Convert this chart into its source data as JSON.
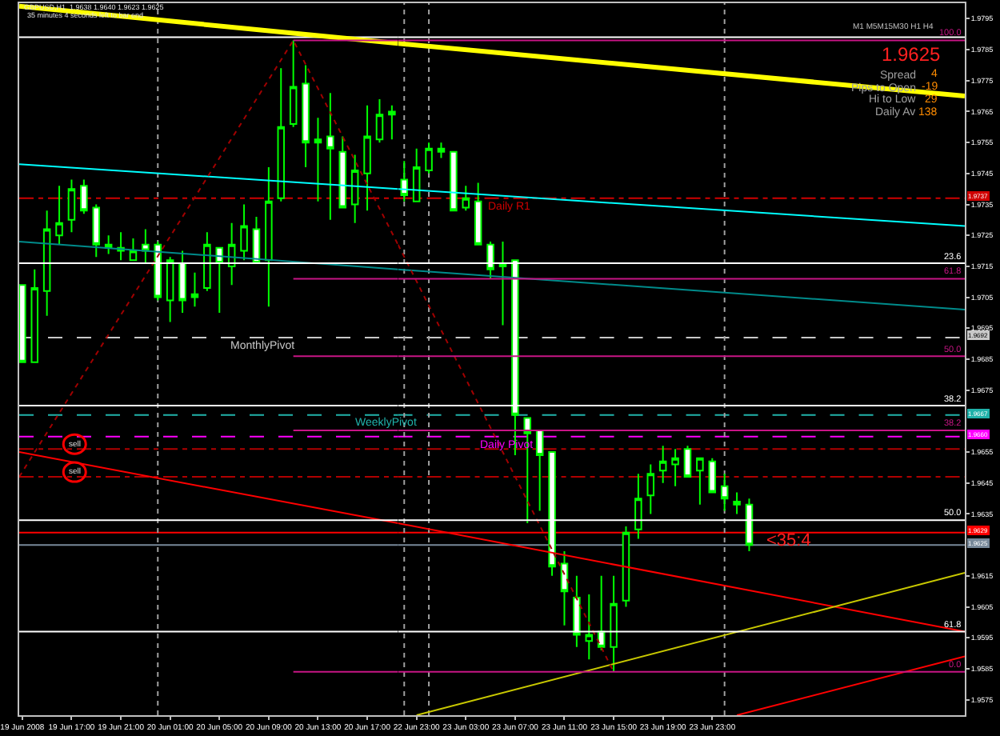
{
  "chart_data": [
    {
      "type": "candlestick",
      "title": "GBPUSD,H1  1.9638 1.9640 1.9623 1.9625",
      "subtitle": "35 minutes 4 seconds left to bar end",
      "x": [
        "2008-06-19T13:00",
        "2008-06-19T14:00",
        "2008-06-19T15:00",
        "2008-06-19T16:00",
        "2008-06-19T17:00",
        "2008-06-19T18:00",
        "2008-06-19T19:00",
        "2008-06-19T20:00",
        "2008-06-19T21:00",
        "2008-06-19T22:00",
        "2008-06-19T23:00",
        "2008-06-20T00:00",
        "2008-06-20T01:00",
        "2008-06-20T02:00",
        "2008-06-20T03:00",
        "2008-06-20T04:00",
        "2008-06-20T05:00",
        "2008-06-20T06:00",
        "2008-06-20T07:00",
        "2008-06-20T08:00",
        "2008-06-20T09:00",
        "2008-06-20T10:00",
        "2008-06-20T11:00",
        "2008-06-20T12:00",
        "2008-06-20T13:00",
        "2008-06-20T14:00",
        "2008-06-20T15:00",
        "2008-06-20T16:00",
        "2008-06-20T17:00",
        "2008-06-20T18:00",
        "2008-06-20T19:00"
      ],
      "ohlc": [
        [
          1.9709,
          1.9709,
          1.9684,
          1.9684
        ],
        [
          1.9684,
          1.9714,
          1.9684,
          1.9708
        ],
        [
          1.9707,
          1.9733,
          1.9699,
          1.9727
        ],
        [
          1.9725,
          1.9741,
          1.9722,
          1.9729
        ],
        [
          1.973,
          1.9743,
          1.9726,
          1.974
        ],
        [
          1.9741,
          1.9743,
          1.9732,
          1.9733
        ],
        [
          1.9734,
          1.9735,
          1.9718,
          1.9722
        ],
        [
          1.9722,
          1.9725,
          1.9719,
          1.9721
        ],
        [
          1.9721,
          1.9726,
          1.9717,
          1.972
        ],
        [
          1.9717,
          1.9724,
          1.9717,
          1.972
        ],
        [
          1.9722,
          1.9727,
          1.9716,
          1.972
        ],
        [
          1.9722,
          1.9723,
          1.9704,
          1.9705
        ],
        [
          1.9704,
          1.9718,
          1.9697,
          1.9717
        ],
        [
          1.9716,
          1.972,
          1.97,
          1.9704
        ],
        [
          1.9705,
          1.9713,
          1.9702,
          1.9706
        ],
        [
          1.9708,
          1.9726,
          1.9707,
          1.9722
        ],
        [
          1.9721,
          1.9721,
          1.97,
          1.9716
        ],
        [
          1.9715,
          1.9729,
          1.9709,
          1.9722
        ],
        [
          1.972,
          1.9735,
          1.9717,
          1.9728
        ],
        [
          1.9727,
          1.9731,
          1.9716,
          1.9716
        ],
        [
          1.9717,
          1.9747,
          1.9702,
          1.9736
        ],
        [
          1.9737,
          1.9779,
          1.9736,
          1.976
        ],
        [
          1.9761,
          1.9788,
          1.976,
          1.9773
        ],
        [
          1.9774,
          1.978,
          1.9747,
          1.9755
        ],
        [
          1.9756,
          1.9763,
          1.9736,
          1.9755
        ],
        [
          1.9757,
          1.9771,
          1.973,
          1.9753
        ],
        [
          1.9752,
          1.9757,
          1.9734,
          1.9734
        ],
        [
          1.9735,
          1.9751,
          1.9729,
          1.9746
        ],
        [
          1.9745,
          1.9767,
          1.9733,
          1.9757
        ],
        [
          1.9756,
          1.9769,
          1.9755,
          1.9764
        ],
        [
          1.9765,
          1.9767,
          1.9756,
          1.9764
        ]
      ],
      "color": "#00ff00",
      "colors": [
        "#ffffff",
        "#000000",
        "#000000",
        "#000000",
        "#000000",
        "#ffffff",
        "#ffffff",
        "#00ff00",
        "#00ff00",
        "#000000",
        "#ffffff",
        "#ffffff",
        "#000000",
        "#ffffff",
        "#00ff00",
        "#000000",
        "#ffffff",
        "#000000",
        "#000000",
        "#ffffff",
        "#000000",
        "#000000",
        "#000000",
        "#ffffff",
        "#00ff00",
        "#ffffff",
        "#ffffff",
        "#000000",
        "#000000",
        "#000000",
        "#00ff00"
      ],
      "series": [
        {
          "type": "line",
          "color": "#ffff00",
          "x": [
            "2008-06-19T12:45",
            "2008-06-20T19:30"
          ],
          "values": [
            1.9799,
            1.9787
          ]
        },
        {
          "type": "line",
          "color": "#00ffff",
          "x": [
            "2008-06-19T12:45",
            "2008-06-20T19:30"
          ],
          "values": [
            1.9748,
            1.974
          ]
        },
        {
          "type": "line",
          "color": "#008b8b",
          "x": [
            "2008-06-19T12:45",
            "2008-06-20T19:30"
          ],
          "values": [
            1.9723,
            1.9714
          ]
        },
        {
          "type": "line",
          "color": "#ff0000",
          "x": [
            "2008-06-19T12:45",
            "2008-06-20T19:30"
          ],
          "values": [
            1.9655,
            1.9632
          ]
        },
        {
          "type": "line",
          "color": "#a00000",
          "line_style": "dotted",
          "x": [
            "2008-06-19T12:45",
            "2008-06-20T11:00",
            "2008-06-20T19:30"
          ],
          "values": [
            1.9647,
            1.9788,
            1.9722
          ]
        },
        {
          "type": "line",
          "color": "#ffffff",
          "x": [
            "2008-06-19T12:45",
            "2008-06-20T19:30"
          ],
          "values": [
            1.9716,
            1.9716
          ]
        },
        {
          "type": "line",
          "color": "#ffffff",
          "x": [
            "2008-06-19T12:45",
            "2008-06-20T19:30"
          ],
          "values": [
            1.967,
            1.967
          ]
        },
        {
          "type": "line",
          "color": "#ffffff",
          "x": [
            "2008-06-19T12:45",
            "2008-06-20T19:30"
          ],
          "values": [
            1.9633,
            1.9633
          ]
        },
        {
          "type": "line",
          "color": "#ffffff",
          "x": [
            "2008-06-19T12:45",
            "2008-06-20T19:30"
          ],
          "values": [
            1.9597,
            1.9597
          ]
        },
        {
          "type": "line",
          "color": "#c71585",
          "x": [
            "2008-06-20T11:00",
            "2008-06-20T19:30"
          ],
          "values": [
            1.9788,
            1.9788
          ]
        },
        {
          "type": "line",
          "color": "#c71585",
          "x": [
            "2008-06-20T11:00",
            "2008-06-20T19:30"
          ],
          "values": [
            1.9711,
            1.9711
          ]
        },
        {
          "type": "line",
          "color": "#c71585",
          "x": [
            "2008-06-20T11:00",
            "2008-06-20T19:30"
          ],
          "values": [
            1.9686,
            1.9686
          ]
        },
        {
          "type": "line",
          "color": "#c71585",
          "x": [
            "2008-06-20T11:00",
            "2008-06-20T19:30"
          ],
          "values": [
            1.9662,
            1.9662
          ]
        },
        {
          "type": "line",
          "color": "#c71585",
          "x": [
            "2008-06-20T11:00",
            "2008-06-20T19:30"
          ],
          "values": [
            1.9584,
            1.9584
          ]
        }
      ],
      "ref_lines": [
        {
          "axis": "y",
          "value": 1.9789,
          "color": "#ffffff",
          "line_style": "solid"
        },
        {
          "axis": "y",
          "value": 1.9737,
          "color": "#d00000",
          "line_style": "dashdot"
        },
        {
          "axis": "y",
          "value": 1.9692,
          "label": "MonthlyPivot",
          "color": "#c8c8c8",
          "line_style": "dashed"
        },
        {
          "axis": "y",
          "value": 1.9667,
          "label": "WeeklyPivot",
          "color": "#20b2aa",
          "line_style": "dashed"
        },
        {
          "axis": "y",
          "value": 1.966,
          "color": "#ff00ff",
          "line_style": "dashed"
        },
        {
          "axis": "y",
          "value": 1.9656,
          "label": "sell",
          "color": "#b00000",
          "line_style": "dashdot"
        },
        {
          "axis": "y",
          "value": 1.9647,
          "label": "sell",
          "color": "#b00000",
          "line_style": "dashdot"
        },
        {
          "axis": "y",
          "value": 1.9629,
          "color": "#ff0000",
          "line_style": "solid"
        },
        {
          "axis": "y",
          "value": 1.9625,
          "color": "#778899",
          "line_style": "solid"
        },
        {
          "axis": "x",
          "value": "2008-06-20T00:00",
          "color": "#a0a0a0",
          "line_style": "dotted"
        }
      ],
      "xlim": [
        "2008-06-19T12:45",
        "2008-06-20T19:30"
      ],
      "xticks": [
        {
          "value": "2008-06-19T13:00",
          "label": "19 Jun 2008"
        },
        {
          "value": "2008-06-19T17:00",
          "label": "19 Jun 17:00"
        },
        {
          "value": "2008-06-19T21:00",
          "label": "19 Jun 21:00"
        },
        {
          "value": "2008-06-20T01:00",
          "label": "20 Jun 01:00"
        },
        {
          "value": "2008-06-20T05:00",
          "label": "20 Jun 05:00"
        },
        {
          "value": "2008-06-20T09:00",
          "label": "20 Jun 09:00"
        },
        {
          "value": "2008-06-20T13:00",
          "label": "20 Jun 13:00"
        },
        {
          "value": "2008-06-20T17:00",
          "label": "20 Jun 17:00"
        }
      ],
      "ylim": [
        1.957,
        1.98
      ],
      "tick_labels": "x",
      "grid": false
    },
    {
      "type": "candlestick",
      "x": [
        "2008-06-22T22:00",
        "2008-06-22T23:00",
        "2008-06-23T00:00",
        "2008-06-23T01:00",
        "2008-06-23T02:00",
        "2008-06-23T03:00",
        "2008-06-23T04:00",
        "2008-06-23T05:00",
        "2008-06-23T06:00",
        "2008-06-23T07:00",
        "2008-06-23T08:00",
        "2008-06-23T09:00",
        "2008-06-23T10:00",
        "2008-06-23T11:00",
        "2008-06-23T12:00",
        "2008-06-23T13:00",
        "2008-06-23T14:00",
        "2008-06-23T15:00",
        "2008-06-23T16:00",
        "2008-06-23T17:00",
        "2008-06-23T18:00",
        "2008-06-23T19:00",
        "2008-06-23T20:00",
        "2008-06-23T21:00",
        "2008-06-23T22:00",
        "2008-06-23T23:00",
        "2008-06-24T00:00",
        "2008-06-24T01:00",
        "2008-06-24T02:00"
      ],
      "ohlc": [
        [
          1.9743,
          1.9749,
          1.9736,
          1.9738
        ],
        [
          1.9736,
          1.9753,
          1.9736,
          1.9747
        ],
        [
          1.9746,
          1.9755,
          1.9745,
          1.9753
        ],
        [
          1.9752,
          1.9755,
          1.975,
          1.9753
        ],
        [
          1.9752,
          1.9752,
          1.9733,
          1.9733
        ],
        [
          1.9734,
          1.9741,
          1.9733,
          1.9737
        ],
        [
          1.9736,
          1.9742,
          1.9722,
          1.9722
        ],
        [
          1.9722,
          1.9723,
          1.9711,
          1.9714
        ],
        [
          1.9716,
          1.9723,
          1.9696,
          1.9715
        ],
        [
          1.9717,
          1.9717,
          1.9654,
          1.9667
        ],
        [
          1.9666,
          1.9666,
          1.9632,
          1.9661
        ],
        [
          1.9662,
          1.9662,
          1.9636,
          1.9654
        ],
        [
          1.9655,
          1.9655,
          1.9615,
          1.9618
        ],
        [
          1.9619,
          1.9623,
          1.9599,
          1.961
        ],
        [
          1.9608,
          1.9615,
          1.9592,
          1.9596
        ],
        [
          1.9594,
          1.9609,
          1.9588,
          1.9596
        ],
        [
          1.9597,
          1.9615,
          1.9591,
          1.9592
        ],
        [
          1.9592,
          1.9615,
          1.9584,
          1.9606
        ],
        [
          1.9607,
          1.9631,
          1.9605,
          1.9629
        ],
        [
          1.963,
          1.9648,
          1.9627,
          1.964
        ],
        [
          1.9641,
          1.9651,
          1.9635,
          1.9648
        ],
        [
          1.9649,
          1.9657,
          1.9645,
          1.9652
        ],
        [
          1.9651,
          1.9656,
          1.9644,
          1.9653
        ],
        [
          1.9656,
          1.9657,
          1.9647,
          1.9647
        ],
        [
          1.9649,
          1.9653,
          1.9638,
          1.9653
        ],
        [
          1.9652,
          1.9653,
          1.9642,
          1.9642
        ],
        [
          1.9644,
          1.9648,
          1.9636,
          1.964
        ],
        [
          1.9639,
          1.9642,
          1.9635,
          1.9638
        ],
        [
          1.9638,
          1.964,
          1.9623,
          1.9625
        ]
      ],
      "color": "#00ff00",
      "colors": [
        "#ffffff",
        "#000000",
        "#000000",
        "#00ff00",
        "#ffffff",
        "#000000",
        "#ffffff",
        "#ffffff",
        "#00ff00",
        "#ffffff",
        "#ffffff",
        "#ffffff",
        "#ffffff",
        "#ffffff",
        "#ffffff",
        "#000000",
        "#ffffff",
        "#000000",
        "#000000",
        "#000000",
        "#000000",
        "#000000",
        "#000000",
        "#ffffff",
        "#000000",
        "#ffffff",
        "#ffffff",
        "#00ff00",
        "#ffffff"
      ],
      "series": [
        {
          "type": "line",
          "color": "#ffff00",
          "x": [
            "2008-06-22T21:30",
            "2008-06-24T19:30"
          ],
          "values": [
            1.9787,
            1.977
          ]
        },
        {
          "type": "line",
          "color": "#00ffff",
          "x": [
            "2008-06-22T21:30",
            "2008-06-24T19:30"
          ],
          "values": [
            1.974,
            1.9728
          ]
        },
        {
          "type": "line",
          "color": "#008b8b",
          "x": [
            "2008-06-22T21:30",
            "2008-06-24T19:30"
          ],
          "values": [
            1.9714,
            1.9701
          ]
        },
        {
          "type": "line",
          "color": "#ff0000",
          "x": [
            "2008-06-22T21:30",
            "2008-06-24T19:30"
          ],
          "values": [
            1.9632,
            1.9597
          ]
        },
        {
          "type": "line",
          "color": "#c8c800",
          "x": [
            "2008-06-22T23:00",
            "2008-06-24T19:30"
          ],
          "values": [
            1.957,
            1.9616
          ]
        },
        {
          "type": "line",
          "color": "#ff0000",
          "x": [
            "2008-06-24T01:00",
            "2008-06-24T19:30"
          ],
          "values": [
            1.957,
            1.9589
          ]
        },
        {
          "type": "line",
          "color": "#a00000",
          "line_style": "dotted",
          "x": [
            "2008-06-22T21:30",
            "2008-06-23T15:00"
          ],
          "values": [
            1.9722,
            1.9584
          ]
        },
        {
          "type": "line",
          "name": "23.6",
          "color": "#ffffff",
          "x": [
            "2008-06-22T21:30",
            "2008-06-24T19:30"
          ],
          "values": [
            1.9716,
            1.9716
          ]
        },
        {
          "type": "line",
          "name": "38.2",
          "color": "#ffffff",
          "x": [
            "2008-06-22T21:30",
            "2008-06-24T19:30"
          ],
          "values": [
            1.967,
            1.967
          ]
        },
        {
          "type": "line",
          "name": "50.0",
          "color": "#ffffff",
          "x": [
            "2008-06-22T21:30",
            "2008-06-24T19:30"
          ],
          "values": [
            1.9633,
            1.9633
          ]
        },
        {
          "type": "line",
          "name": "61.8",
          "color": "#ffffff",
          "x": [
            "2008-06-22T21:30",
            "2008-06-24T19:30"
          ],
          "values": [
            1.9597,
            1.9597
          ]
        },
        {
          "type": "line",
          "name": "100.0",
          "color": "#c71585",
          "x": [
            "2008-06-22T21:30",
            "2008-06-24T19:30"
          ],
          "values": [
            1.9788,
            1.9788
          ]
        },
        {
          "type": "line",
          "name": "61.8",
          "color": "#c71585",
          "x": [
            "2008-06-22T21:30",
            "2008-06-24T19:30"
          ],
          "values": [
            1.9711,
            1.9711
          ]
        },
        {
          "type": "line",
          "name": "50.0",
          "color": "#c71585",
          "x": [
            "2008-06-22T21:30",
            "2008-06-24T19:30"
          ],
          "values": [
            1.9686,
            1.9686
          ]
        },
        {
          "type": "line",
          "name": "38.2",
          "color": "#c71585",
          "x": [
            "2008-06-22T21:30",
            "2008-06-24T19:30"
          ],
          "values": [
            1.9662,
            1.9662
          ]
        },
        {
          "type": "line",
          "name": "0.0",
          "color": "#c71585",
          "x": [
            "2008-06-22T21:30",
            "2008-06-24T19:30"
          ],
          "values": [
            1.9584,
            1.9584
          ]
        }
      ],
      "ref_lines": [
        {
          "axis": "y",
          "value": 1.9789,
          "color": "#ffffff",
          "line_style": "solid"
        },
        {
          "axis": "y",
          "value": 1.9737,
          "label": "Daily R1",
          "color": "#d00000",
          "line_style": "dashdot"
        },
        {
          "axis": "y",
          "value": 1.9692,
          "color": "#c8c8c8",
          "line_style": "dashed"
        },
        {
          "axis": "y",
          "value": 1.9667,
          "color": "#20b2aa",
          "line_style": "dashed"
        },
        {
          "axis": "y",
          "value": 1.966,
          "label": "Daily Pivot",
          "color": "#ff00ff",
          "line_style": "dashed"
        },
        {
          "axis": "y",
          "value": 1.9656,
          "color": "#b00000",
          "line_style": "dashdot"
        },
        {
          "axis": "y",
          "value": 1.9647,
          "color": "#b00000",
          "line_style": "dashdot"
        },
        {
          "axis": "y",
          "value": 1.9629,
          "color": "#ff0000",
          "line_style": "solid"
        },
        {
          "axis": "y",
          "value": 1.9625,
          "color": "#778899",
          "line_style": "solid"
        },
        {
          "axis": "x",
          "value": "2008-06-22T22:00",
          "color": "#a0a0a0",
          "line_style": "dotted"
        },
        {
          "axis": "x",
          "value": "2008-06-23T00:00",
          "color": "#a0a0a0",
          "line_style": "dotted"
        },
        {
          "axis": "x",
          "value": "2008-06-24T00:00",
          "color": "#a0a0a0",
          "line_style": "dotted"
        }
      ],
      "annotations": [
        "M1 M5M15M30 H1 H4",
        "1.9625",
        "Spread",
        "4",
        "Pips to Open",
        "-19",
        "Hi to Low",
        "29",
        "Daily Av",
        "138",
        "<35:4",
        {
          "text": "1.9737",
          "y": 1.9737
        },
        {
          "text": "1.9692",
          "y": 1.9692
        },
        {
          "text": "1.9667",
          "y": 1.9667
        },
        {
          "text": "1.9660",
          "y": 1.966
        },
        {
          "text": "1.9629",
          "y": 1.9629
        },
        {
          "text": "1.9625",
          "y": 1.9625
        }
      ],
      "xlim": [
        "2008-06-22T21:30",
        "2008-06-24T19:30"
      ],
      "xticks": [
        {
          "value": "2008-06-22T23:00",
          "label": "22 Jun 23:00"
        },
        {
          "value": "2008-06-23T03:00",
          "label": "23 Jun 03:00"
        },
        {
          "value": "2008-06-23T07:00",
          "label": "23 Jun 07:00"
        },
        {
          "value": "2008-06-23T11:00",
          "label": "23 Jun 11:00"
        },
        {
          "value": "2008-06-23T15:00",
          "label": "23 Jun 15:00"
        },
        {
          "value": "2008-06-23T19:00",
          "label": "23 Jun 19:00"
        },
        {
          "value": "2008-06-23T23:00",
          "label": "23 Jun 23:00"
        }
      ],
      "ylim": [
        1.957,
        1.98
      ],
      "yticks": [
        1.9575,
        1.9585,
        1.9595,
        1.9605,
        1.9615,
        1.9635,
        1.9645,
        1.9655,
        1.9675,
        1.9685,
        1.9695,
        1.9705,
        1.9715,
        1.9725,
        1.9735,
        1.9745,
        1.9755,
        1.9765,
        1.9775,
        1.9785,
        1.9795
      ],
      "grid": false
    }
  ]
}
